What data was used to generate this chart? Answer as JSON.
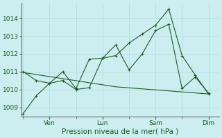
{
  "background_color": "#cceef0",
  "grid_color": "#aadddd",
  "line_color": "#1a5c1a",
  "xlabel": "Pression niveau de la mer( hPa )",
  "xlabel_fontsize": 7.5,
  "ytick_fontsize": 6.5,
  "xtick_fontsize": 6.5,
  "ylim": [
    1008.5,
    1014.85
  ],
  "yticks": [
    1009,
    1010,
    1011,
    1012,
    1013,
    1014
  ],
  "xtick_labels": [
    "Ven",
    "Lun",
    "Sam",
    "Dim"
  ],
  "xtick_positions": [
    1,
    3,
    5,
    7
  ],
  "xminor_positions": [
    0,
    1,
    2,
    3,
    4,
    5,
    6,
    7
  ],
  "xlim": [
    -0.05,
    7.4
  ],
  "series1_x": [
    0,
    0.5,
    1.0,
    1.5,
    2.0,
    2.5,
    3.0,
    3.5,
    4.0,
    4.5,
    5.0,
    5.5,
    6.0,
    6.5,
    7.0
  ],
  "series1_y": [
    1008.65,
    1009.65,
    1010.35,
    1010.5,
    1010.0,
    1010.1,
    1011.75,
    1011.9,
    1012.6,
    1013.1,
    1013.6,
    1014.5,
    1011.9,
    1010.8,
    1009.75
  ],
  "series2_x": [
    0,
    0.5,
    1.0,
    1.5,
    2.0,
    2.5,
    3.0,
    3.5,
    4.0,
    4.5,
    5.0,
    5.5,
    6.0,
    6.5,
    7.0
  ],
  "series2_y": [
    1011.0,
    1010.5,
    1010.35,
    1011.0,
    1010.05,
    1011.7,
    1011.75,
    1012.5,
    1011.1,
    1012.0,
    1013.3,
    1013.65,
    1010.05,
    1010.7,
    1009.8
  ],
  "series3_x": [
    0,
    3.5,
    7.0
  ],
  "series3_y": [
    1010.95,
    1010.15,
    1009.75
  ]
}
